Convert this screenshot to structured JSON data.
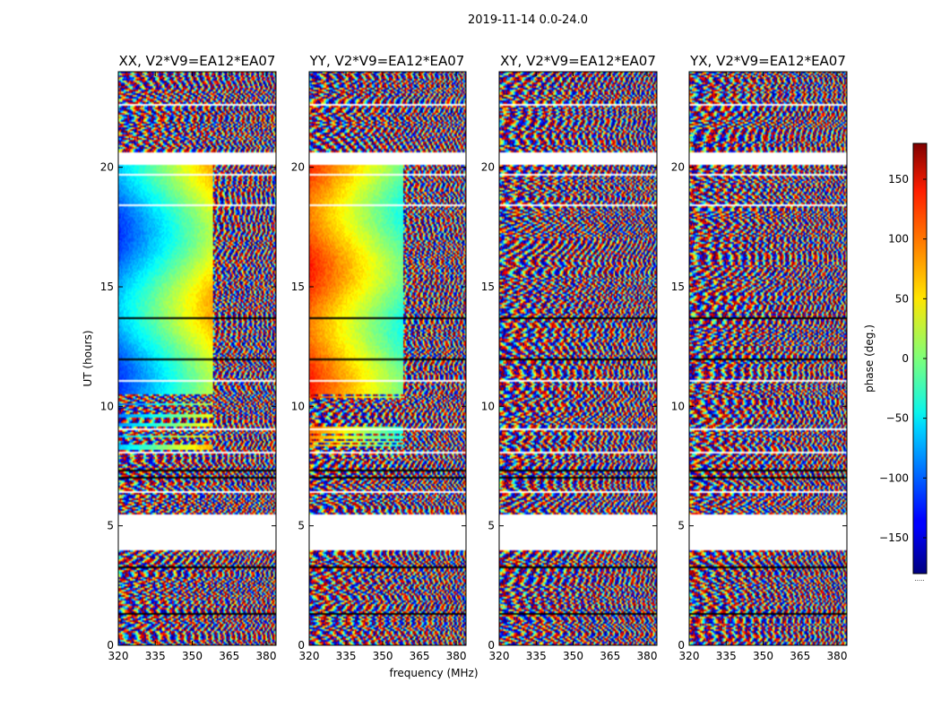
{
  "figure": {
    "suptitle": "2019-11-14 0.0-24.0"
  },
  "chart_data": {
    "type": "heatmap",
    "xlabel": "frequency (MHz)",
    "ylabel": "UT (hours)",
    "xlim": [
      320,
      384
    ],
    "ylim": [
      0,
      24
    ],
    "xticks": [
      320,
      335,
      350,
      365,
      380
    ],
    "yticks": [
      0,
      5,
      10,
      15,
      20
    ],
    "panels": [
      {
        "title": "XX, V2*V9=EA12*EA07",
        "pol": "XX"
      },
      {
        "title": "YY, V2*V9=EA12*EA07",
        "pol": "YY"
      },
      {
        "title": "XY, V2*V9=EA12*EA07",
        "pol": "XY"
      },
      {
        "title": "YX, V2*V9=EA12*EA07",
        "pol": "YX"
      }
    ],
    "data_gaps_hours": [
      [
        4.0,
        5.5
      ],
      [
        20.1,
        20.6
      ]
    ],
    "colorbar": {
      "label": "phase (deg.)",
      "range": [
        -180,
        180
      ],
      "ticks": [
        150,
        100,
        50,
        0,
        -50,
        -100,
        -150
      ],
      "tick_labels": [
        "150",
        "100",
        "50",
        "0",
        "−50",
        "−100",
        "−150"
      ],
      "colormap": "jet",
      "bottom_label": "....."
    }
  }
}
